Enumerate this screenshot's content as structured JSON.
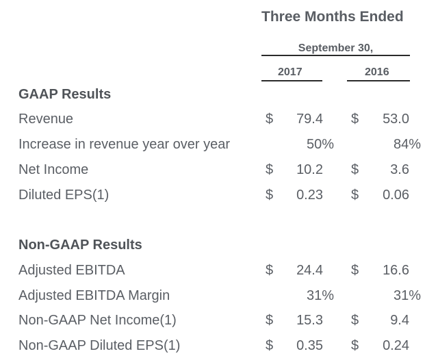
{
  "header": {
    "title": "Three Months Ended",
    "period": "September 30,",
    "years": [
      "2017",
      "2016"
    ]
  },
  "gaap": {
    "title": "GAAP Results",
    "rows": [
      {
        "label": "Revenue",
        "currency_a": "$",
        "value_a": "79.4",
        "currency_b": "$",
        "value_b": "53.0"
      },
      {
        "label": "Increase in revenue year over year",
        "currency_a": "",
        "value_a": "50%",
        "currency_b": "",
        "value_b": "84%"
      },
      {
        "label": "Net Income",
        "currency_a": "$",
        "value_a": "10.2",
        "currency_b": "$",
        "value_b": "3.6"
      },
      {
        "label": "Diluted EPS(1)",
        "currency_a": "$",
        "value_a": "0.23",
        "currency_b": "$",
        "value_b": "0.06"
      }
    ]
  },
  "non_gaap": {
    "title": "Non-GAAP Results",
    "rows": [
      {
        "label": "Adjusted EBITDA",
        "currency_a": "$",
        "value_a": "24.4",
        "currency_b": "$",
        "value_b": "16.6"
      },
      {
        "label": "Adjusted EBITDA Margin",
        "currency_a": "",
        "value_a": "31%",
        "currency_b": "",
        "value_b": "31%"
      },
      {
        "label": "Non-GAAP Net Income(1)",
        "currency_a": "$",
        "value_a": "15.3",
        "currency_b": "$",
        "value_b": "9.4"
      },
      {
        "label": "Non-GAAP Diluted EPS(1)",
        "currency_a": "$",
        "value_a": "0.35",
        "currency_b": "$",
        "value_b": "0.24"
      }
    ]
  }
}
